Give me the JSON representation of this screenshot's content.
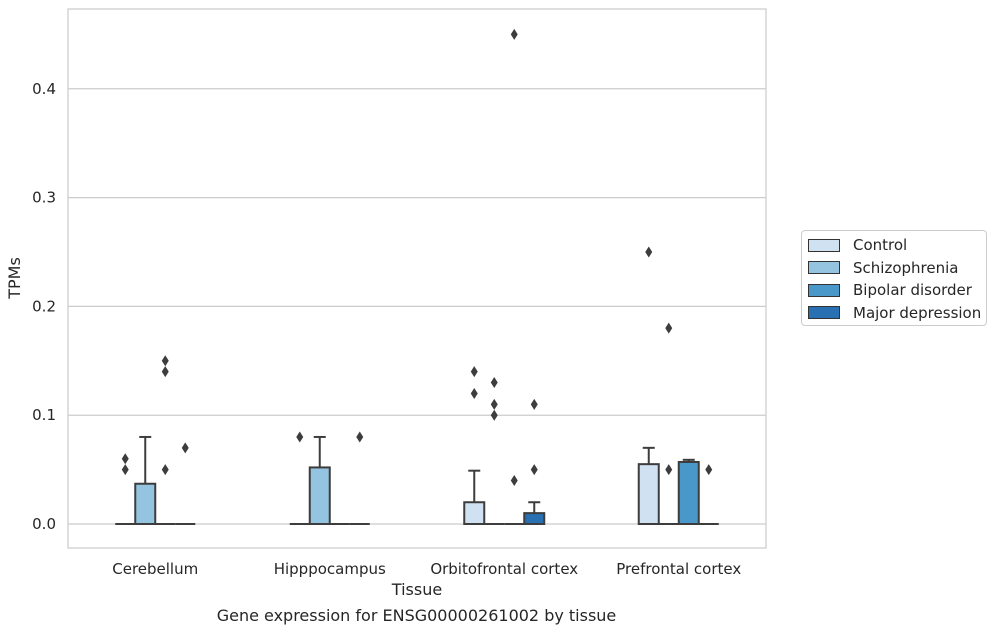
{
  "chart_data": {
    "type": "box",
    "xlabel": "Tissue",
    "ylabel": "TPMs",
    "caption": "Gene expression for ENSG00000261002 by tissue",
    "ylim": [
      -0.022,
      0.475
    ],
    "yticks": [
      0.0,
      0.1,
      0.2,
      0.3,
      0.4
    ],
    "ytick_labels": [
      "0.0",
      "0.1",
      "0.2",
      "0.3",
      "0.4"
    ],
    "grid": true,
    "legend_position": "right",
    "categories": [
      "Cerebellum",
      "Hipppocampus",
      "Orbitofrontal cortex",
      "Prefrontal cortex"
    ],
    "series": [
      {
        "name": "Control",
        "color": "#d0e1f2",
        "boxes": [
          {
            "q1": 0,
            "median": 0,
            "q3": 0,
            "whisker_low": 0,
            "whisker_high": 0,
            "outliers": [
              0.05,
              0.06
            ]
          },
          {
            "q1": 0,
            "median": 0,
            "q3": 0,
            "whisker_low": 0,
            "whisker_high": 0,
            "outliers": [
              0.08
            ]
          },
          {
            "q1": 0,
            "median": 0,
            "q3": 0.02,
            "whisker_low": 0,
            "whisker_high": 0.049,
            "outliers": [
              0.12,
              0.14
            ]
          },
          {
            "q1": 0,
            "median": 0,
            "q3": 0.055,
            "whisker_low": 0,
            "whisker_high": 0.07,
            "outliers": [
              0.25
            ]
          }
        ]
      },
      {
        "name": "Schizophrenia",
        "color": "#94c4df",
        "boxes": [
          {
            "q1": 0,
            "median": 0,
            "q3": 0.037,
            "whisker_low": 0,
            "whisker_high": 0.08,
            "outliers": []
          },
          {
            "q1": 0,
            "median": 0,
            "q3": 0.052,
            "whisker_low": 0,
            "whisker_high": 0.08,
            "outliers": []
          },
          {
            "q1": 0,
            "median": 0,
            "q3": 0,
            "whisker_low": 0,
            "whisker_high": 0,
            "outliers": [
              0.1,
              0.11,
              0.13
            ]
          },
          {
            "q1": 0,
            "median": 0,
            "q3": 0,
            "whisker_low": 0,
            "whisker_high": 0,
            "outliers": [
              0.05,
              0.18
            ]
          }
        ]
      },
      {
        "name": "Bipolar disorder",
        "color": "#4a98c9",
        "boxes": [
          {
            "q1": 0,
            "median": 0,
            "q3": 0,
            "whisker_low": 0,
            "whisker_high": 0,
            "outliers": [
              0.14,
              0.15,
              0.05
            ]
          },
          {
            "q1": 0,
            "median": 0,
            "q3": 0,
            "whisker_low": 0,
            "whisker_high": 0,
            "outliers": []
          },
          {
            "q1": 0,
            "median": 0,
            "q3": 0,
            "whisker_low": 0,
            "whisker_high": 0,
            "outliers": [
              0.04,
              0.45
            ]
          },
          {
            "q1": 0,
            "median": 0,
            "q3": 0.057,
            "whisker_low": 0,
            "whisker_high": 0.059,
            "outliers": []
          }
        ]
      },
      {
        "name": "Major depression",
        "color": "#2870b1",
        "boxes": [
          {
            "q1": 0,
            "median": 0,
            "q3": 0,
            "whisker_low": 0,
            "whisker_high": 0,
            "outliers": [
              0.07
            ]
          },
          {
            "q1": 0,
            "median": 0,
            "q3": 0,
            "whisker_low": 0,
            "whisker_high": 0,
            "outliers": [
              0.08
            ]
          },
          {
            "q1": 0,
            "median": 0,
            "q3": 0.01,
            "whisker_low": 0,
            "whisker_high": 0.02,
            "outliers": [
              0.05,
              0.11
            ]
          },
          {
            "q1": 0,
            "median": 0,
            "q3": 0,
            "whisker_low": 0,
            "whisker_high": 0,
            "outliers": [
              0.05
            ]
          }
        ]
      }
    ]
  }
}
